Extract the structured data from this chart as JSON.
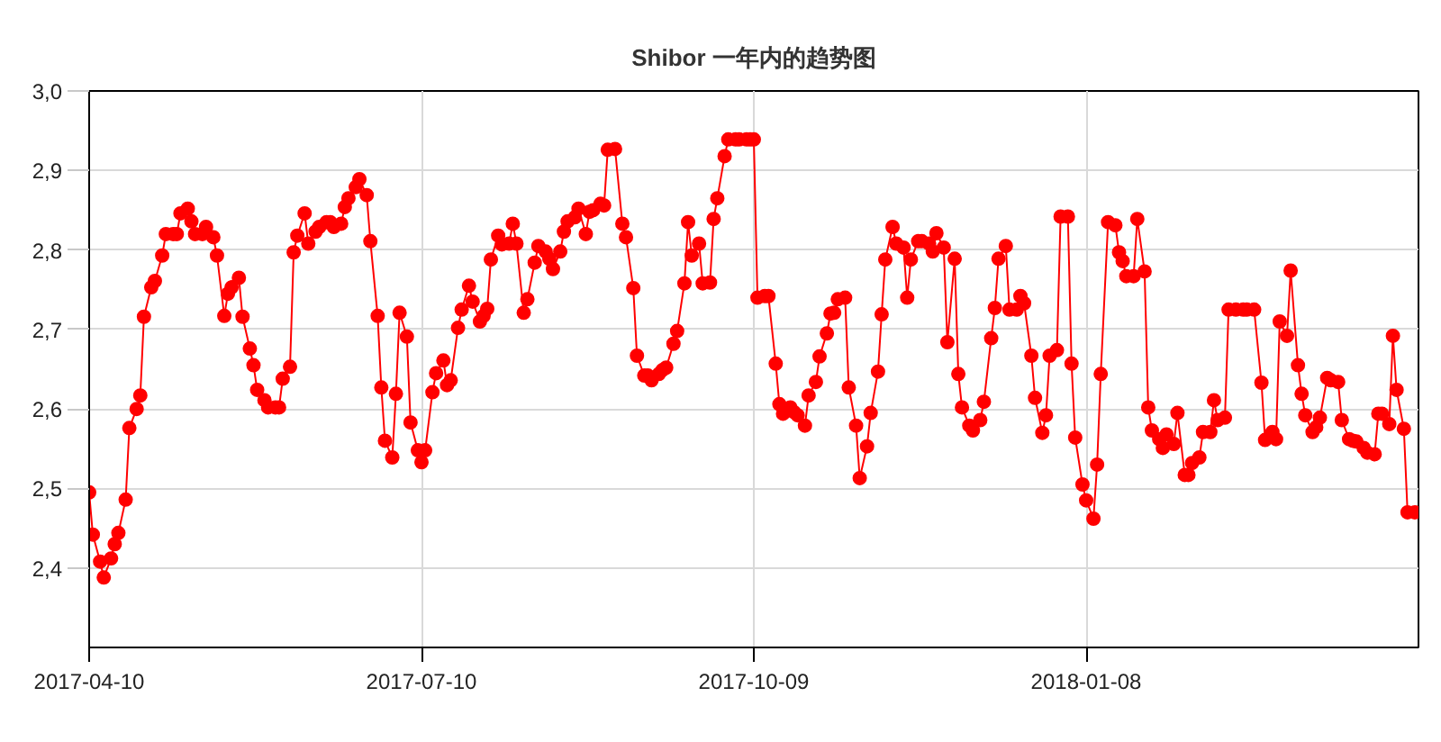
{
  "chart_data": {
    "type": "line",
    "title": "Shibor 一年内的趋势图",
    "xlim": [
      "2017-04-10",
      "2018-04-09"
    ],
    "xticks": [
      "2017-04-10",
      "2017-07-10",
      "2017-10-09",
      "2018-01-08"
    ],
    "ylim": [
      2.3,
      3.0
    ],
    "yticks": [
      {
        "value": 2.4,
        "label": "2,4"
      },
      {
        "value": 2.5,
        "label": "2,5"
      },
      {
        "value": 2.6,
        "label": "2,6"
      },
      {
        "value": 2.7,
        "label": "2,7"
      },
      {
        "value": 2.8,
        "label": "2,8"
      },
      {
        "value": 2.9,
        "label": "2,9"
      },
      {
        "value": 3.0,
        "label": "3,0"
      }
    ],
    "grid": true,
    "marker": "circle",
    "line_style": "solid",
    "x": [
      "2017-04-10",
      "2017-04-11",
      "2017-04-13",
      "2017-04-14",
      "2017-04-16",
      "2017-04-17",
      "2017-04-18",
      "2017-04-20",
      "2017-04-21",
      "2017-04-23",
      "2017-04-24",
      "2017-04-25",
      "2017-04-27",
      "2017-04-28",
      "2017-04-30",
      "2017-05-01",
      "2017-05-03",
      "2017-05-04",
      "2017-05-05",
      "2017-05-07",
      "2017-05-08",
      "2017-05-09",
      "2017-05-11",
      "2017-05-12",
      "2017-05-14",
      "2017-05-15",
      "2017-05-17",
      "2017-05-18",
      "2017-05-19",
      "2017-05-21",
      "2017-05-22",
      "2017-05-24",
      "2017-05-25",
      "2017-05-26",
      "2017-05-28",
      "2017-05-29",
      "2017-05-31",
      "2017-06-01",
      "2017-06-02",
      "2017-06-04",
      "2017-06-05",
      "2017-06-06",
      "2017-06-08",
      "2017-06-09",
      "2017-06-11",
      "2017-06-12",
      "2017-06-14",
      "2017-06-15",
      "2017-06-16",
      "2017-06-18",
      "2017-06-19",
      "2017-06-20",
      "2017-06-22",
      "2017-06-23",
      "2017-06-25",
      "2017-06-26",
      "2017-06-28",
      "2017-06-29",
      "2017-06-30",
      "2017-07-02",
      "2017-07-03",
      "2017-07-04",
      "2017-07-06",
      "2017-07-07",
      "2017-07-09",
      "2017-07-10",
      "2017-07-11",
      "2017-07-13",
      "2017-07-14",
      "2017-07-16",
      "2017-07-17",
      "2017-07-18",
      "2017-07-20",
      "2017-07-21",
      "2017-07-23",
      "2017-07-24",
      "2017-07-26",
      "2017-07-27",
      "2017-07-28",
      "2017-07-29",
      "2017-07-31",
      "2017-08-01",
      "2017-08-03",
      "2017-08-04",
      "2017-08-05",
      "2017-08-07",
      "2017-08-08",
      "2017-08-10",
      "2017-08-11",
      "2017-08-13",
      "2017-08-14",
      "2017-08-15",
      "2017-08-17",
      "2017-08-18",
      "2017-08-19",
      "2017-08-21",
      "2017-08-22",
      "2017-08-24",
      "2017-08-25",
      "2017-08-26",
      "2017-08-28",
      "2017-08-29",
      "2017-08-30",
      "2017-09-01",
      "2017-09-03",
      "2017-09-04",
      "2017-09-06",
      "2017-09-07",
      "2017-09-09",
      "2017-09-10",
      "2017-09-11",
      "2017-09-13",
      "2017-09-14",
      "2017-09-15",
      "2017-09-17",
      "2017-09-18",
      "2017-09-20",
      "2017-09-21",
      "2017-09-22",
      "2017-09-24",
      "2017-09-25",
      "2017-09-27",
      "2017-09-28",
      "2017-09-29",
      "2017-10-01",
      "2017-10-02",
      "2017-10-04",
      "2017-10-05",
      "2017-10-07",
      "2017-10-08",
      "2017-10-09",
      "2017-10-10",
      "2017-10-12",
      "2017-10-13",
      "2017-10-15",
      "2017-10-16",
      "2017-10-17",
      "2017-10-19",
      "2017-10-20",
      "2017-10-21",
      "2017-10-23",
      "2017-10-24",
      "2017-10-26",
      "2017-10-27",
      "2017-10-29",
      "2017-10-30",
      "2017-10-31",
      "2017-11-01",
      "2017-11-03",
      "2017-11-04",
      "2017-11-06",
      "2017-11-07",
      "2017-11-09",
      "2017-11-10",
      "2017-11-12",
      "2017-11-13",
      "2017-11-14",
      "2017-11-16",
      "2017-11-17",
      "2017-11-19",
      "2017-11-20",
      "2017-11-21",
      "2017-11-23",
      "2017-11-24",
      "2017-11-26",
      "2017-11-27",
      "2017-11-28",
      "2017-11-30",
      "2017-12-01",
      "2017-12-03",
      "2017-12-04",
      "2017-12-05",
      "2017-12-07",
      "2017-12-08",
      "2017-12-10",
      "2017-12-11",
      "2017-12-13",
      "2017-12-14",
      "2017-12-15",
      "2017-12-17",
      "2017-12-18",
      "2017-12-20",
      "2017-12-21",
      "2017-12-22",
      "2017-12-24",
      "2017-12-25",
      "2017-12-27",
      "2017-12-28",
      "2017-12-29",
      "2017-12-31",
      "2018-01-01",
      "2018-01-03",
      "2018-01-04",
      "2018-01-05",
      "2018-01-07",
      "2018-01-08",
      "2018-01-10",
      "2018-01-11",
      "2018-01-12",
      "2018-01-14",
      "2018-01-16",
      "2018-01-17",
      "2018-01-18",
      "2018-01-19",
      "2018-01-21",
      "2018-01-22",
      "2018-01-24",
      "2018-01-25",
      "2018-01-26",
      "2018-01-28",
      "2018-01-29",
      "2018-01-30",
      "2018-02-01",
      "2018-02-02",
      "2018-02-04",
      "2018-02-05",
      "2018-02-06",
      "2018-02-08",
      "2018-02-09",
      "2018-02-11",
      "2018-02-12",
      "2018-02-13",
      "2018-02-15",
      "2018-02-16",
      "2018-02-18",
      "2018-02-20",
      "2018-02-21",
      "2018-02-23",
      "2018-02-25",
      "2018-02-26",
      "2018-02-28",
      "2018-03-01",
      "2018-03-02",
      "2018-03-04",
      "2018-03-05",
      "2018-03-07",
      "2018-03-08",
      "2018-03-09",
      "2018-03-11",
      "2018-03-12",
      "2018-03-13",
      "2018-03-15",
      "2018-03-16",
      "2018-03-18",
      "2018-03-19",
      "2018-03-21",
      "2018-03-22",
      "2018-03-23",
      "2018-03-25",
      "2018-03-26",
      "2018-03-28",
      "2018-03-29",
      "2018-03-30",
      "2018-04-01",
      "2018-04-02",
      "2018-04-03",
      "2018-04-05",
      "2018-04-06",
      "2018-04-08"
    ],
    "series": [
      {
        "color": "#ff0000",
        "values": [
          2.495,
          2.442,
          2.408,
          2.388,
          2.412,
          2.43,
          2.444,
          2.486,
          2.576,
          2.6,
          2.617,
          2.716,
          2.753,
          2.761,
          2.793,
          2.82,
          2.82,
          2.82,
          2.846,
          2.852,
          2.836,
          2.82,
          2.82,
          2.829,
          2.816,
          2.793,
          2.717,
          2.745,
          2.753,
          2.765,
          2.716,
          2.676,
          2.655,
          2.624,
          2.611,
          2.602,
          2.602,
          2.602,
          2.638,
          2.653,
          2.797,
          2.818,
          2.846,
          2.808,
          2.823,
          2.829,
          2.835,
          2.835,
          2.829,
          2.833,
          2.854,
          2.865,
          2.879,
          2.889,
          2.869,
          2.811,
          2.717,
          2.627,
          2.56,
          2.539,
          2.619,
          2.721,
          2.691,
          2.583,
          2.548,
          2.533,
          2.548,
          2.621,
          2.645,
          2.661,
          2.63,
          2.636,
          2.702,
          2.725,
          2.755,
          2.735,
          2.71,
          2.717,
          2.726,
          2.788,
          2.818,
          2.807,
          2.808,
          2.833,
          2.808,
          2.721,
          2.738,
          2.784,
          2.805,
          2.798,
          2.789,
          2.776,
          2.798,
          2.823,
          2.836,
          2.841,
          2.852,
          2.82,
          2.848,
          2.85,
          2.858,
          2.856,
          2.926,
          2.927,
          2.833,
          2.816,
          2.752,
          2.667,
          2.642,
          2.642,
          2.636,
          2.644,
          2.649,
          2.652,
          2.682,
          2.698,
          2.758,
          2.835,
          2.793,
          2.808,
          2.758,
          2.759,
          2.839,
          2.865,
          2.918,
          2.939,
          2.939,
          2.939,
          2.939,
          2.939,
          2.939,
          2.74,
          2.742,
          2.742,
          2.657,
          2.606,
          2.594,
          2.602,
          2.596,
          2.592,
          2.579,
          2.617,
          2.634,
          2.666,
          2.695,
          2.72,
          2.721,
          2.738,
          2.74,
          2.627,
          2.579,
          2.513,
          2.553,
          2.595,
          2.647,
          2.719,
          2.788,
          2.829,
          2.808,
          2.803,
          2.74,
          2.788,
          2.811,
          2.811,
          2.808,
          2.798,
          2.821,
          2.803,
          2.684,
          2.789,
          2.644,
          2.602,
          2.579,
          2.573,
          2.586,
          2.609,
          2.689,
          2.727,
          2.789,
          2.805,
          2.725,
          2.725,
          2.742,
          2.733,
          2.667,
          2.614,
          2.57,
          2.592,
          2.667,
          2.674,
          2.842,
          2.842,
          2.657,
          2.564,
          2.505,
          2.485,
          2.462,
          2.53,
          2.644,
          2.835,
          2.831,
          2.797,
          2.786,
          2.767,
          2.767,
          2.839,
          2.773,
          2.602,
          2.573,
          2.562,
          2.551,
          2.568,
          2.556,
          2.595,
          2.517,
          2.517,
          2.532,
          2.539,
          2.571,
          2.571,
          2.611,
          2.586,
          2.589,
          2.725,
          2.725,
          2.725,
          2.725,
          2.725,
          2.633,
          2.561,
          2.571,
          2.562,
          2.71,
          2.692,
          2.774,
          2.655,
          2.619,
          2.592,
          2.571,
          2.577,
          2.589,
          2.639,
          2.636,
          2.634,
          2.586,
          2.562,
          2.56,
          2.559,
          2.551,
          2.545,
          2.543,
          2.594,
          2.594,
          2.581,
          2.692,
          2.624,
          2.575,
          2.47,
          2.47
        ]
      }
    ]
  }
}
